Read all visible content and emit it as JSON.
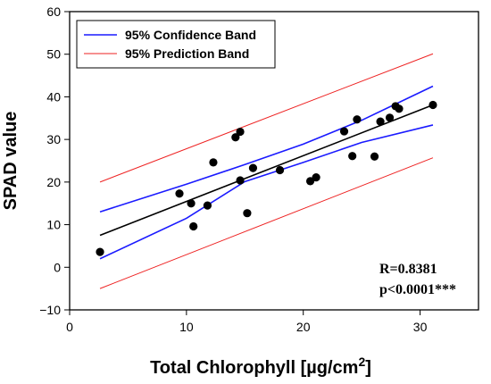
{
  "chart_data": {
    "type": "scatter",
    "title": "",
    "xlabel": "Total Chlorophyll [µg/cm",
    "xlabel_superscript": "2",
    "xlabel_suffix": "]",
    "ylabel": "SPAD value",
    "xlim": [
      0,
      35
    ],
    "ylim": [
      -10,
      60
    ],
    "xticks": [
      0,
      10,
      20,
      30
    ],
    "yticks": [
      -10,
      0,
      10,
      20,
      30,
      40,
      50,
      60
    ],
    "ytick_labels": [
      "−10",
      "0",
      "10",
      "20",
      "30",
      "40",
      "50",
      "60"
    ],
    "grid": false,
    "legend_position": "top-left",
    "points": {
      "x": [
        2.6,
        9.4,
        10.4,
        10.6,
        11.8,
        12.3,
        14.2,
        14.6,
        14.6,
        15.2,
        15.7,
        18.0,
        20.6,
        21.1,
        23.5,
        24.2,
        24.6,
        26.1,
        26.6,
        27.4,
        27.9,
        28.2,
        31.1
      ],
      "y": [
        3.6,
        17.3,
        15.0,
        9.6,
        14.5,
        24.6,
        30.5,
        31.8,
        20.4,
        12.7,
        23.3,
        22.8,
        20.2,
        21.1,
        31.9,
        26.1,
        34.7,
        26.0,
        34.2,
        35.1,
        37.8,
        37.2,
        38.1
      ]
    },
    "fit": {
      "name": "",
      "x": [
        2.6,
        31.1
      ],
      "y": [
        7.5,
        38.1
      ],
      "color": "#000000"
    },
    "series": [
      {
        "name": "95% Confidence Band",
        "color": "#1a1aff",
        "upper": {
          "x": [
            2.6,
            10,
            15,
            20,
            25,
            31.1
          ],
          "y": [
            13.0,
            19.5,
            24.1,
            28.9,
            34.5,
            42.5
          ]
        },
        "lower": {
          "x": [
            2.6,
            10,
            15,
            20,
            25,
            31.1
          ],
          "y": [
            2.0,
            11.5,
            20.1,
            24.6,
            29.3,
            33.4
          ]
        }
      },
      {
        "name": "95% Prediction Band",
        "color": "#ee2222",
        "upper": {
          "x": [
            2.6,
            31.1
          ],
          "y": [
            20.0,
            50.1
          ]
        },
        "lower": {
          "x": [
            2.6,
            31.1
          ],
          "y": [
            -5.0,
            25.7
          ]
        }
      }
    ],
    "annotations": [
      "R=0.8381",
      "p<0.0001***"
    ]
  }
}
